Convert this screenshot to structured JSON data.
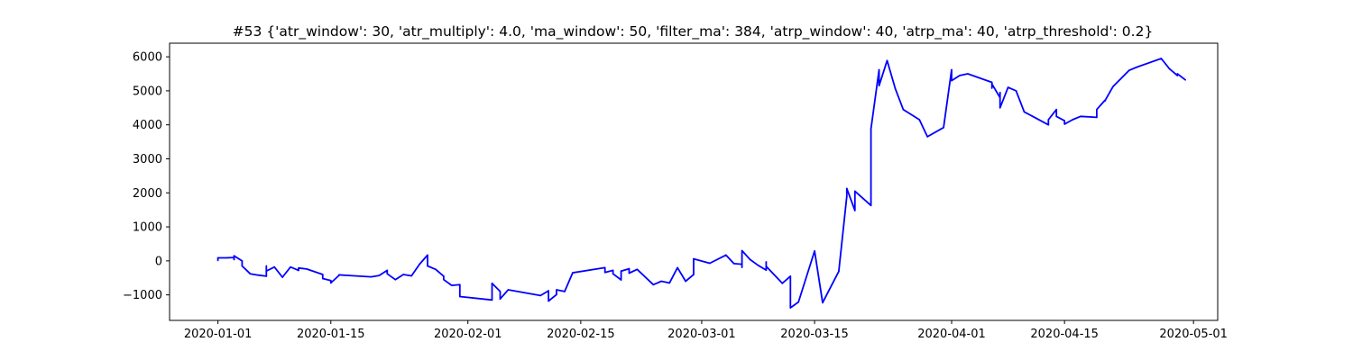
{
  "chart_data": {
    "type": "line",
    "title": "#53 {'atr_window': 30, 'atr_multiply': 4.0, 'ma_window': 50, 'filter_ma': 384, 'atrp_window': 40, 'atrp_ma': 40, 'atrp_threshold': 0.2}",
    "xlabel": "",
    "ylabel": "",
    "grid": false,
    "legend": "none",
    "line_color": "#0000ff",
    "xlim": [
      "2019-12-26",
      "2020-05-04"
    ],
    "ylim": [
      -1750,
      6400
    ],
    "x_ticks": [
      "2020-01-01",
      "2020-01-15",
      "2020-02-01",
      "2020-02-15",
      "2020-03-01",
      "2020-03-15",
      "2020-04-01",
      "2020-04-15",
      "2020-05-01"
    ],
    "y_ticks": [
      -1000,
      0,
      1000,
      2000,
      3000,
      4000,
      5000,
      6000
    ],
    "series": [
      {
        "x": [
          "2020-01-01",
          "2020-01-01",
          "2020-01-01",
          "2020-01-02",
          "2020-01-03",
          "2020-01-03",
          "2020-01-03",
          "2020-01-04",
          "2020-01-04",
          "2020-01-04",
          "2020-01-05",
          "2020-01-06",
          "2020-01-07",
          "2020-01-07",
          "2020-01-07",
          "2020-01-08",
          "2020-01-09",
          "2020-01-10",
          "2020-01-11",
          "2020-01-11",
          "2020-01-12",
          "2020-01-14",
          "2020-01-14",
          "2020-01-15",
          "2020-01-15",
          "2020-01-16",
          "2020-01-16",
          "2020-01-20",
          "2020-01-21",
          "2020-01-22",
          "2020-01-22",
          "2020-01-23",
          "2020-01-24",
          "2020-01-25",
          "2020-01-26",
          "2020-01-27",
          "2020-01-27",
          "2020-01-28",
          "2020-01-29",
          "2020-01-29",
          "2020-01-30",
          "2020-01-31",
          "2020-01-31",
          "2020-01-31",
          "2020-02-04",
          "2020-02-04",
          "2020-02-05",
          "2020-02-05",
          "2020-02-06",
          "2020-02-10",
          "2020-02-11",
          "2020-02-11",
          "2020-02-12",
          "2020-02-12",
          "2020-02-13",
          "2020-02-14",
          "2020-02-18",
          "2020-02-18",
          "2020-02-19",
          "2020-02-19",
          "2020-02-20",
          "2020-02-20",
          "2020-02-21",
          "2020-02-21",
          "2020-02-22",
          "2020-02-24",
          "2020-02-25",
          "2020-02-26",
          "2020-02-27",
          "2020-02-28",
          "2020-02-29",
          "2020-02-29",
          "2020-03-02",
          "2020-03-04",
          "2020-03-05",
          "2020-03-06",
          "2020-03-06",
          "2020-03-06",
          "2020-03-07",
          "2020-03-08",
          "2020-03-09",
          "2020-03-09",
          "2020-03-09",
          "2020-03-11",
          "2020-03-12",
          "2020-03-12",
          "2020-03-13",
          "2020-03-15",
          "2020-03-16",
          "2020-03-18",
          "2020-03-19",
          "2020-03-19",
          "2020-03-20",
          "2020-03-20",
          "2020-03-22",
          "2020-03-22",
          "2020-03-23",
          "2020-03-23",
          "2020-03-24",
          "2020-03-25",
          "2020-03-26",
          "2020-03-28",
          "2020-03-29",
          "2020-03-31",
          "2020-04-01",
          "2020-04-01",
          "2020-04-02",
          "2020-04-03",
          "2020-04-06",
          "2020-04-06",
          "2020-04-06",
          "2020-04-07",
          "2020-04-07",
          "2020-04-07",
          "2020-04-08",
          "2020-04-09",
          "2020-04-10",
          "2020-04-13",
          "2020-04-13",
          "2020-04-14",
          "2020-04-14",
          "2020-04-15",
          "2020-04-15",
          "2020-04-16",
          "2020-04-17",
          "2020-04-19",
          "2020-04-19",
          "2020-04-20",
          "2020-04-20",
          "2020-04-21",
          "2020-04-23",
          "2020-04-24",
          "2020-04-27",
          "2020-04-28",
          "2020-04-29",
          "2020-04-29",
          "2020-04-30"
        ],
        "y": [
          10,
          80,
          90,
          90,
          100,
          40,
          150,
          0,
          -80,
          -150,
          -380,
          -420,
          -450,
          -150,
          -300,
          -180,
          -480,
          -180,
          -280,
          -210,
          -240,
          -400,
          -520,
          -580,
          -650,
          -430,
          -410,
          -470,
          -430,
          -280,
          -380,
          -550,
          -400,
          -440,
          -100,
          170,
          -150,
          -250,
          -450,
          -550,
          -720,
          -700,
          -880,
          -1050,
          -1150,
          -660,
          -900,
          -1120,
          -850,
          -1020,
          -880,
          -1180,
          -990,
          -850,
          -900,
          -350,
          -200,
          -340,
          -280,
          -380,
          -560,
          -300,
          -230,
          -360,
          -250,
          -700,
          -600,
          -650,
          -200,
          -600,
          -400,
          60,
          -70,
          170,
          -80,
          -100,
          -190,
          300,
          40,
          -130,
          -270,
          -30,
          -160,
          -660,
          -450,
          -1380,
          -1210,
          290,
          -1230,
          -310,
          1900,
          2130,
          1480,
          2050,
          1630,
          3880,
          5620,
          5150,
          5890,
          5070,
          4450,
          4150,
          3650,
          3920,
          5620,
          5300,
          5450,
          5500,
          5250,
          5080,
          5200,
          4800,
          4950,
          4500,
          5100,
          5000,
          4380,
          4000,
          4150,
          4450,
          4250,
          4120,
          4020,
          4150,
          4250,
          4220,
          4450,
          4720,
          4700,
          5120,
          5600,
          5700,
          5950,
          5650,
          5450,
          5500,
          5320
        ]
      }
    ]
  }
}
